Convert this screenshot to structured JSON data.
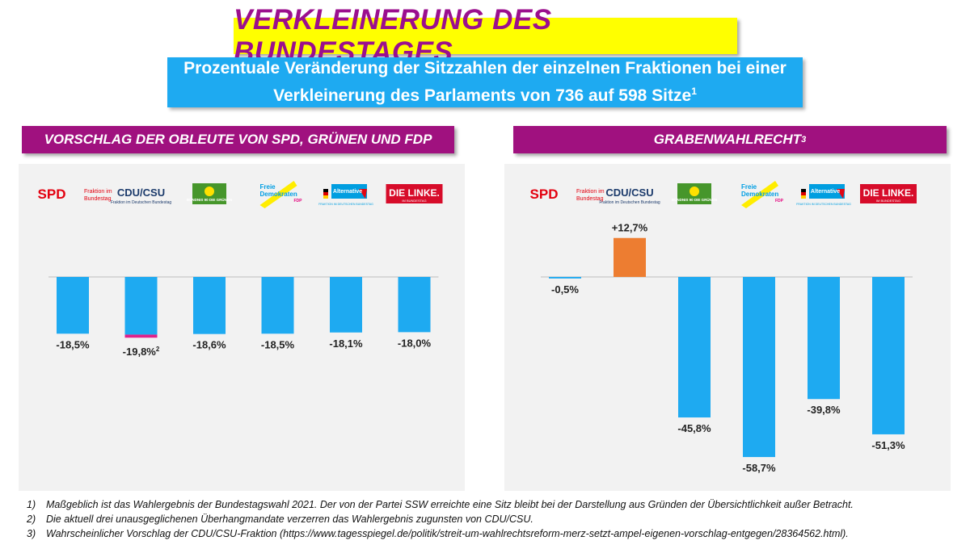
{
  "title": "VERKLEINERUNG DES BUNDESTAGES",
  "subtitle": {
    "line1": "Prozentuale Veränderung der Sitzzahlen der einzelnen Fraktionen bei einer",
    "line2": "Verkleinerung des Parlaments von 736 auf 598 Sitze",
    "line2_sup": "1"
  },
  "colors": {
    "title_bg": "#ffff00",
    "title_text": "#9b0f8e",
    "subtitle_bg": "#1eaaf1",
    "header_bg": "#a0117f",
    "bar": "#1eaaf1",
    "bar_positive": "#ed7d31",
    "bar_highlight": "#e0218a"
  },
  "parties": [
    {
      "key": "spd",
      "logo": "SPD",
      "logo_sub": "Fraktion im Bundestag"
    },
    {
      "key": "cdu",
      "logo": "CDU/CSU",
      "logo_sub": "Fraktion im Deutschen Bundestag"
    },
    {
      "key": "gruene",
      "logo": "BÜNDNIS 90 DIE GRÜNEN"
    },
    {
      "key": "fdp",
      "logo": "Freie Demokraten",
      "logo_sub": "FDP"
    },
    {
      "key": "afd",
      "logo": "Alternative für Deutschland",
      "logo_sub": "FRAKTION IM DEUTSCHEN BUNDESTAG"
    },
    {
      "key": "linke",
      "logo": "DIE LINKE.",
      "logo_sub": "IM BUNDESTAG"
    }
  ],
  "chart_data": [
    {
      "type": "bar",
      "title": "VORSCHLAG DER OBLEUTE VON SPD, GRÜNEN UND FDP",
      "categories": [
        "SPD",
        "CDU/CSU",
        "Grüne",
        "FDP",
        "AfD",
        "Die Linke"
      ],
      "values": [
        -18.5,
        -19.8,
        -18.6,
        -18.5,
        -18.1,
        -18.0
      ],
      "labels": [
        "-18,5%",
        "-19,8%",
        "-18,6%",
        "-18,5%",
        "-18,1%",
        "-18,0%"
      ],
      "label_sups": [
        "",
        "2",
        "",
        "",
        "",
        ""
      ],
      "highlight": [
        null,
        1.0,
        null,
        null,
        null,
        null
      ],
      "ylim": [
        -60,
        15
      ]
    },
    {
      "type": "bar",
      "title": "GRABENWAHLRECHT",
      "title_sup": "3",
      "categories": [
        "SPD",
        "CDU/CSU",
        "Grüne",
        "FDP",
        "AfD",
        "Die Linke"
      ],
      "values": [
        -0.5,
        12.7,
        -45.8,
        -58.7,
        -39.8,
        -51.3
      ],
      "labels": [
        "-0,5%",
        "+12,7%",
        "-45,8%",
        "-58,7%",
        "-39,8%",
        "-51,3%"
      ],
      "label_sups": [
        "",
        "",
        "",
        "",
        "",
        ""
      ],
      "highlight": [
        null,
        null,
        null,
        null,
        null,
        null
      ],
      "ylim": [
        -60,
        15
      ]
    }
  ],
  "footnotes": [
    {
      "num": "1)",
      "text": "Maßgeblich ist das Wahlergebnis der Bundestagswahl 2021. Der von der Partei SSW erreichte eine Sitz bleibt bei der Darstellung aus Gründen der Übersichtlichkeit außer Betracht."
    },
    {
      "num": "2)",
      "text": "Die aktuell drei unausgeglichenen Überhangmandate verzerren das Wahlergebnis zugunsten von CDU/CSU."
    },
    {
      "num": "3)",
      "text": "Wahrscheinlicher Vorschlag der CDU/CSU-Fraktion (https://www.tagesspiegel.de/politik/streit-um-wahlrechtsreform-merz-setzt-ampel-eigenen-vorschlag-entgegen/28364562.html)."
    }
  ]
}
